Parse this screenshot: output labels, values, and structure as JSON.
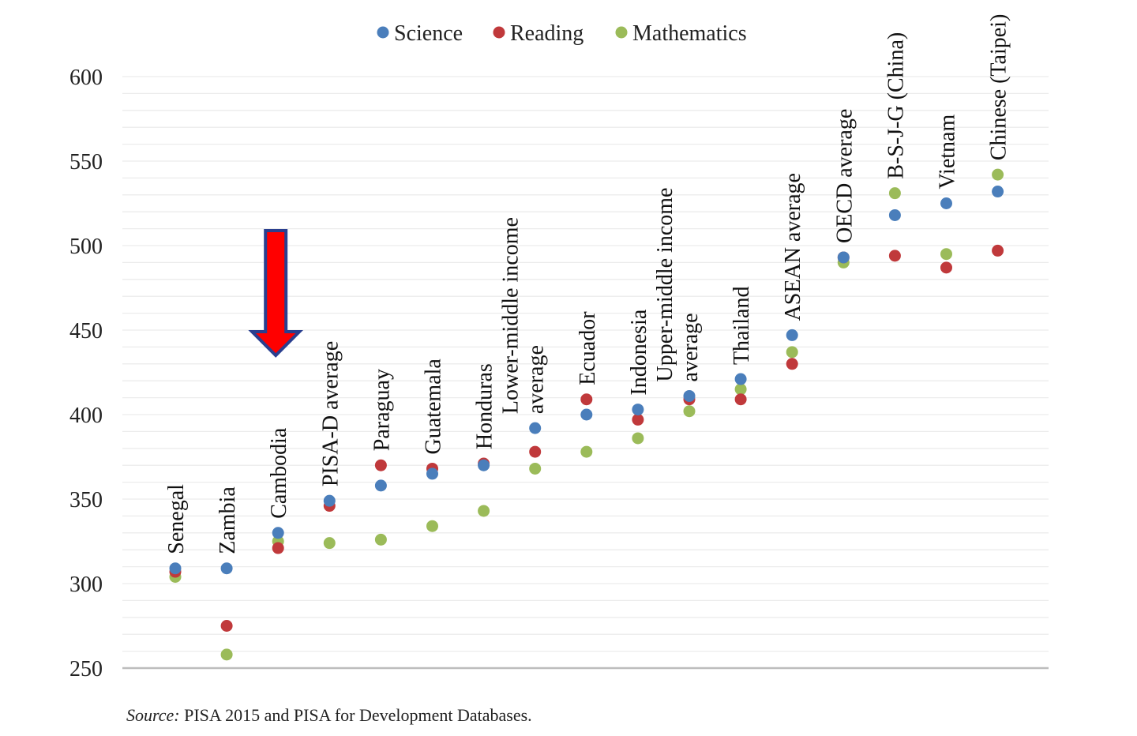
{
  "chart_data": {
    "type": "scatter",
    "categories": [
      [
        "Senegal"
      ],
      [
        "Zambia"
      ],
      [
        "Cambodia"
      ],
      [
        "PISA-D average"
      ],
      [
        "Paraguay"
      ],
      [
        "Guatemala"
      ],
      [
        "Honduras"
      ],
      [
        "Lower-middle income",
        "average"
      ],
      [
        "Ecuador"
      ],
      [
        "Indonesia"
      ],
      [
        "Upper-middle income",
        "average"
      ],
      [
        "Thailand"
      ],
      [
        "ASEAN average"
      ],
      [
        "OECD average"
      ],
      [
        "B-S-J-G (China)"
      ],
      [
        "Vietnam"
      ],
      [
        "Chinese (Taipei)"
      ]
    ],
    "series": [
      {
        "name": "Science",
        "color": "#4a7ebb",
        "values": [
          309,
          309,
          330,
          349,
          358,
          365,
          370,
          392,
          400,
          403,
          411,
          421,
          447,
          493,
          518,
          525,
          532
        ]
      },
      {
        "name": "Reading",
        "color": "#c0393b",
        "values": [
          307,
          275,
          321,
          346,
          370,
          368,
          371,
          378,
          409,
          397,
          409,
          409,
          430,
          493,
          494,
          487,
          497
        ]
      },
      {
        "name": "Mathematics",
        "color": "#9bbb59",
        "values": [
          304,
          258,
          325,
          324,
          326,
          334,
          343,
          368,
          378,
          386,
          402,
          415,
          437,
          490,
          531,
          495,
          542
        ]
      }
    ],
    "ylim": [
      250,
      600
    ],
    "yticks": [
      "250",
      "300",
      "350",
      "400",
      "450",
      "500",
      "550",
      "600"
    ],
    "grid": true,
    "legend_position": "top-center",
    "annotation": {
      "type": "arrow",
      "color": "#ff0000",
      "border_color": "#2a3f8f",
      "points_to": "Cambodia"
    },
    "source_prefix": "Source:",
    "source_text": " PISA 2015 and PISA for Development Databases."
  }
}
